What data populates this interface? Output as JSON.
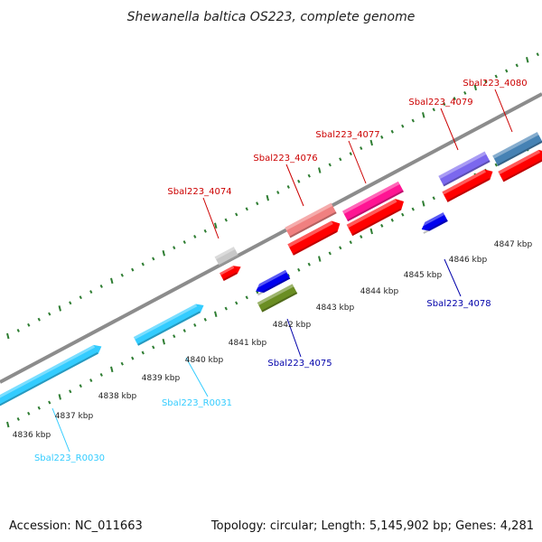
{
  "title": "Shewanella baltica OS223, complete genome",
  "footer": {
    "accession": "Accession: NC_011663",
    "summary": "Topology: circular; Length: 5,145,902 bp; Genes: 4,281"
  },
  "ticks": [
    "4836 kbp",
    "4837 kbp",
    "4838 kbp",
    "4839 kbp",
    "4840 kbp",
    "4841 kbp",
    "4842 kbp",
    "4843 kbp",
    "4844 kbp",
    "4845 kbp",
    "4846 kbp",
    "4847 kbp"
  ],
  "features": [
    {
      "id": "Sbal223_R0030",
      "strand": "plus",
      "color": "#33ccff",
      "label_color": "#33ccff",
      "label": "Sbal223_R0030"
    },
    {
      "id": "Sbal223_R0031",
      "strand": "plus",
      "color": "#33ccff",
      "label_color": "#33ccff",
      "label": "Sbal223_R0031"
    },
    {
      "id": "Sbal223_4074",
      "strand": "plus",
      "color": "#ff0000",
      "label_color": "#cc0000",
      "label": "Sbal223_4074"
    },
    {
      "id": "Sbal223_4075",
      "strand": "minus",
      "color": "#0000ee",
      "label_color": "#0000aa",
      "label": "Sbal223_4075"
    },
    {
      "id": "Sbal223_4076",
      "strand": "plus",
      "color": "#ff0000",
      "label_color": "#cc0000",
      "label": "Sbal223_4076"
    },
    {
      "id": "Sbal223_4077",
      "strand": "plus",
      "color": "#ff0000",
      "label_color": "#cc0000",
      "label": "Sbal223_4077"
    },
    {
      "id": "Sbal223_4078",
      "strand": "minus",
      "color": "#0000ee",
      "label_color": "#0000aa",
      "label": "Sbal223_4078"
    },
    {
      "id": "Sbal223_4079",
      "strand": "plus",
      "color": "#ff0000",
      "label_color": "#cc0000",
      "label": "Sbal223_4079"
    },
    {
      "id": "Sbal223_4080",
      "strand": "plus",
      "color": "#ff0000",
      "label_color": "#cc0000",
      "label": "Sbal223_4080"
    }
  ],
  "overlay_colors": {
    "gray": "#c8c8c8",
    "salmon": "#f08080",
    "magenta": "#ff1493",
    "olive": "#6b8e23",
    "purple": "#7b68ee",
    "steelblue": "#4682b4",
    "backbone": "#8c8c8c",
    "tick": "#2e7d32"
  }
}
